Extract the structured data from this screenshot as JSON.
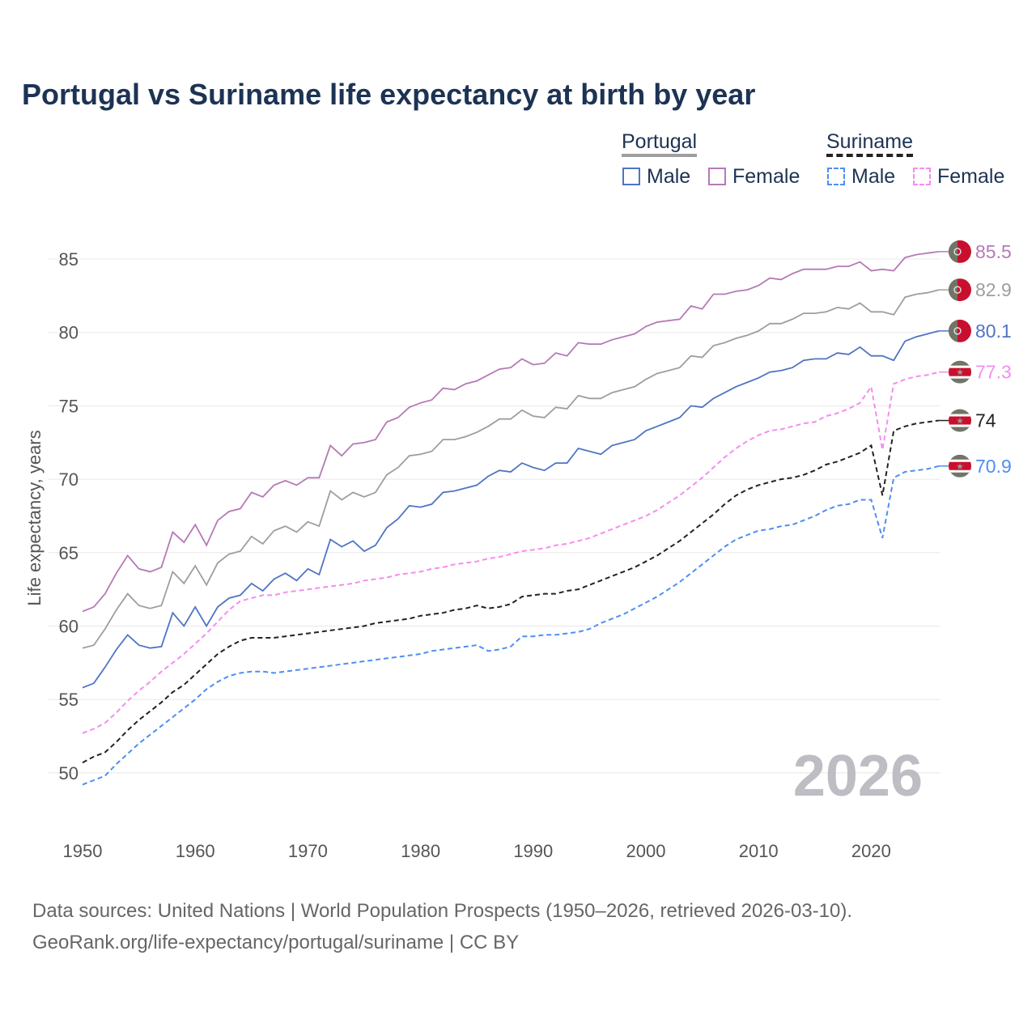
{
  "title": "Portugal vs Suriname life expectancy at birth by year",
  "legend": {
    "portugal": {
      "label": "Portugal",
      "male": "Male",
      "female": "Female"
    },
    "suriname": {
      "label": "Suriname",
      "male": "Male",
      "female": "Female"
    }
  },
  "source_line1": "Data sources: United Nations | World Population Prospects (1950–2026, retrieved 2026-03-10).",
  "source_line2": "GeoRank.org/life-expectancy/portugal/suriname | CC BY",
  "year_watermark": "2026",
  "chart_data": {
    "type": "line",
    "title": "Portugal vs Suriname life expectancy at birth by year",
    "xlabel": "",
    "ylabel": "Life expectancy, years",
    "xlim": [
      1950,
      2026
    ],
    "ylim": [
      47,
      87
    ],
    "x_ticks": [
      "1950",
      "1960",
      "1970",
      "1980",
      "1990",
      "2000",
      "2010",
      "2020"
    ],
    "y_ticks": [
      "50",
      "55",
      "60",
      "65",
      "70",
      "75",
      "80",
      "85"
    ],
    "grid": true,
    "legend_position": "top-right",
    "x_start": 1950,
    "series": [
      {
        "name": "Portugal Female",
        "color": "#b57ab5",
        "dash": false,
        "end_label": "85.5",
        "flag": "portugal",
        "values": [
          61.0,
          61.3,
          62.2,
          63.6,
          64.8,
          63.9,
          63.7,
          64.0,
          66.4,
          65.7,
          66.9,
          65.5,
          67.2,
          67.8,
          68.0,
          69.1,
          68.8,
          69.6,
          69.9,
          69.6,
          70.1,
          70.1,
          72.3,
          71.6,
          72.4,
          72.5,
          72.7,
          73.9,
          74.2,
          74.9,
          75.2,
          75.4,
          76.2,
          76.1,
          76.5,
          76.7,
          77.1,
          77.5,
          77.6,
          78.2,
          77.8,
          77.9,
          78.6,
          78.4,
          79.3,
          79.2,
          79.2,
          79.5,
          79.7,
          79.9,
          80.4,
          80.7,
          80.8,
          80.9,
          81.8,
          81.6,
          82.6,
          82.6,
          82.8,
          82.9,
          83.2,
          83.7,
          83.6,
          84.0,
          84.3,
          84.3,
          84.3,
          84.5,
          84.5,
          84.8,
          84.2,
          84.3,
          84.2,
          85.1,
          85.3,
          85.4,
          85.5
        ]
      },
      {
        "name": "Portugal",
        "color": "#9e9e9e",
        "dash": false,
        "end_label": "82.9",
        "flag": "portugal",
        "values": [
          58.5,
          58.7,
          59.8,
          61.1,
          62.2,
          61.4,
          61.2,
          61.4,
          63.7,
          62.9,
          64.1,
          62.8,
          64.3,
          64.9,
          65.1,
          66.1,
          65.6,
          66.5,
          66.8,
          66.4,
          67.1,
          66.8,
          69.2,
          68.6,
          69.1,
          68.8,
          69.1,
          70.3,
          70.8,
          71.6,
          71.7,
          71.9,
          72.7,
          72.7,
          72.9,
          73.2,
          73.6,
          74.1,
          74.1,
          74.7,
          74.3,
          74.2,
          74.9,
          74.8,
          75.7,
          75.5,
          75.5,
          75.9,
          76.1,
          76.3,
          76.8,
          77.2,
          77.4,
          77.6,
          78.4,
          78.3,
          79.1,
          79.3,
          79.6,
          79.8,
          80.1,
          80.6,
          80.6,
          80.9,
          81.3,
          81.3,
          81.4,
          81.7,
          81.6,
          82.0,
          81.4,
          81.4,
          81.2,
          82.4,
          82.6,
          82.7,
          82.9
        ]
      },
      {
        "name": "Portugal Male",
        "color": "#4f74c4",
        "dash": false,
        "end_label": "80.1",
        "flag": "portugal",
        "values": [
          55.8,
          56.1,
          57.2,
          58.4,
          59.4,
          58.7,
          58.5,
          58.6,
          60.9,
          60.0,
          61.3,
          60.0,
          61.3,
          61.9,
          62.1,
          62.9,
          62.4,
          63.2,
          63.6,
          63.1,
          63.9,
          63.5,
          65.9,
          65.4,
          65.8,
          65.1,
          65.5,
          66.7,
          67.3,
          68.2,
          68.1,
          68.3,
          69.1,
          69.2,
          69.4,
          69.6,
          70.2,
          70.6,
          70.5,
          71.1,
          70.8,
          70.6,
          71.1,
          71.1,
          72.1,
          71.9,
          71.7,
          72.3,
          72.5,
          72.7,
          73.3,
          73.6,
          73.9,
          74.2,
          75.0,
          74.9,
          75.5,
          75.9,
          76.3,
          76.6,
          76.9,
          77.3,
          77.4,
          77.6,
          78.1,
          78.2,
          78.2,
          78.6,
          78.5,
          79.0,
          78.4,
          78.4,
          78.1,
          79.4,
          79.7,
          79.9,
          80.1
        ]
      },
      {
        "name": "Suriname Female",
        "color": "#f58cf0",
        "dash": true,
        "end_label": "77.3",
        "flag": "suriname",
        "values": [
          52.7,
          53.0,
          53.4,
          54.1,
          54.9,
          55.6,
          56.2,
          56.9,
          57.5,
          58.1,
          58.8,
          59.5,
          60.3,
          61.1,
          61.7,
          61.9,
          62.1,
          62.1,
          62.3,
          62.4,
          62.5,
          62.6,
          62.7,
          62.8,
          62.9,
          63.1,
          63.2,
          63.3,
          63.5,
          63.6,
          63.7,
          63.9,
          64.0,
          64.2,
          64.3,
          64.4,
          64.6,
          64.7,
          64.9,
          65.1,
          65.2,
          65.3,
          65.5,
          65.6,
          65.8,
          66.0,
          66.3,
          66.6,
          66.9,
          67.2,
          67.5,
          67.9,
          68.4,
          68.9,
          69.5,
          70.1,
          70.8,
          71.5,
          72.1,
          72.6,
          73.0,
          73.3,
          73.4,
          73.6,
          73.8,
          73.9,
          74.3,
          74.5,
          74.8,
          75.2,
          76.3,
          72.0,
          76.5,
          76.8,
          77.0,
          77.1,
          77.3
        ]
      },
      {
        "name": "Suriname",
        "color": "#222222",
        "dash": true,
        "end_label": "74",
        "flag": "suriname",
        "values": [
          50.7,
          51.1,
          51.4,
          52.1,
          52.9,
          53.6,
          54.2,
          54.8,
          55.5,
          56.0,
          56.7,
          57.4,
          58.1,
          58.6,
          59.0,
          59.2,
          59.2,
          59.2,
          59.3,
          59.4,
          59.5,
          59.6,
          59.7,
          59.8,
          59.9,
          60.0,
          60.2,
          60.3,
          60.4,
          60.5,
          60.7,
          60.8,
          60.9,
          61.1,
          61.2,
          61.4,
          61.2,
          61.3,
          61.5,
          62.0,
          62.1,
          62.2,
          62.2,
          62.4,
          62.5,
          62.8,
          63.1,
          63.4,
          63.7,
          64.0,
          64.4,
          64.8,
          65.3,
          65.8,
          66.4,
          67.0,
          67.6,
          68.3,
          68.9,
          69.3,
          69.6,
          69.8,
          70.0,
          70.1,
          70.3,
          70.6,
          71.0,
          71.2,
          71.5,
          71.8,
          72.3,
          68.9,
          73.3,
          73.6,
          73.8,
          73.9,
          74.0
        ]
      },
      {
        "name": "Suriname Male",
        "color": "#4d8ef5",
        "dash": true,
        "end_label": "70.9",
        "flag": "suriname",
        "values": [
          49.2,
          49.5,
          49.8,
          50.6,
          51.3,
          52.0,
          52.6,
          53.2,
          53.8,
          54.4,
          55.0,
          55.7,
          56.2,
          56.6,
          56.8,
          56.9,
          56.9,
          56.8,
          56.9,
          57.0,
          57.1,
          57.2,
          57.3,
          57.4,
          57.5,
          57.6,
          57.7,
          57.8,
          57.9,
          58.0,
          58.1,
          58.3,
          58.4,
          58.5,
          58.6,
          58.7,
          58.3,
          58.4,
          58.6,
          59.3,
          59.3,
          59.4,
          59.4,
          59.5,
          59.6,
          59.8,
          60.2,
          60.5,
          60.8,
          61.2,
          61.6,
          62.0,
          62.5,
          63.0,
          63.6,
          64.2,
          64.8,
          65.4,
          65.9,
          66.2,
          66.5,
          66.6,
          66.8,
          66.9,
          67.2,
          67.5,
          67.9,
          68.2,
          68.3,
          68.6,
          68.6,
          66.0,
          70.1,
          70.5,
          70.6,
          70.7,
          70.9
        ]
      }
    ]
  }
}
